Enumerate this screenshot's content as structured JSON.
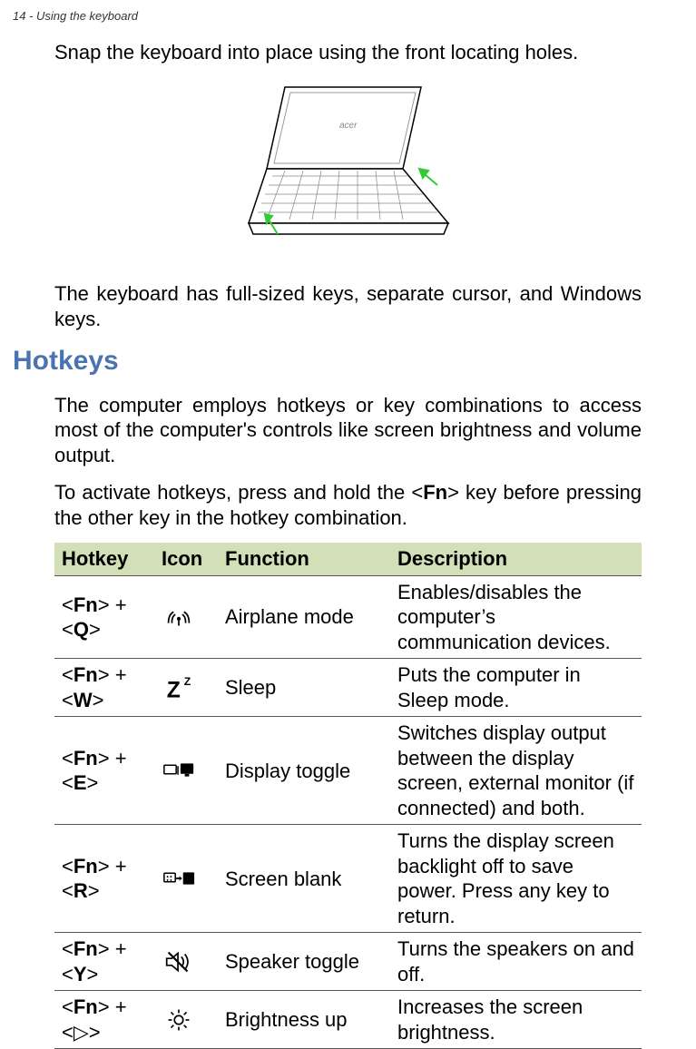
{
  "header": "14 - Using the keyboard",
  "intro_line": "Snap the keyboard into place using the front locating holes.",
  "after_figure": "The keyboard has full-sized keys, separate cursor, and Windows keys.",
  "heading": "Hotkeys",
  "hotkey_intro1": "The computer employs hotkeys or key combinations to access most of the computer's controls like screen brightness and volume output.",
  "hotkey_intro2_prefix": "To activate hotkeys, press and hold the <",
  "hotkey_intro2_fn": "Fn",
  "hotkey_intro2_suffix": "> key before pressing the other key in the hotkey combination.",
  "table": {
    "headers": {
      "hotkey": "Hotkey",
      "icon": "Icon",
      "function": "Function",
      "description": "Description"
    },
    "rows": [
      {
        "fn": "Fn",
        "key": "Q",
        "icon": "airplane",
        "function": "Airplane mode",
        "description": "Enables/disables the computer’s communication devices."
      },
      {
        "fn": "Fn",
        "key": "W",
        "icon": "sleep",
        "function": "Sleep",
        "description": "Puts the computer in Sleep mode."
      },
      {
        "fn": "Fn",
        "key": "E",
        "icon": "display-toggle",
        "function": "Display toggle",
        "description": "Switches display output between the display screen, external monitor (if connected) and both."
      },
      {
        "fn": "Fn",
        "key": "R",
        "icon": "screen-blank",
        "function": "Screen blank",
        "description": "Turns the display screen backlight off to save power. Press any key to return."
      },
      {
        "fn": "Fn",
        "key": "Y",
        "icon": "speaker-toggle",
        "function": "Speaker toggle",
        "description": "Turns the speakers on and off."
      },
      {
        "fn": "Fn",
        "key_symbol": "▷",
        "icon": "brightness-up",
        "function": "Brightness up",
        "description": "Increases the screen brightness."
      }
    ]
  },
  "colors": {
    "heading": "#4a74b0",
    "table_header_bg": "#d2e0b8",
    "border": "#555555"
  }
}
